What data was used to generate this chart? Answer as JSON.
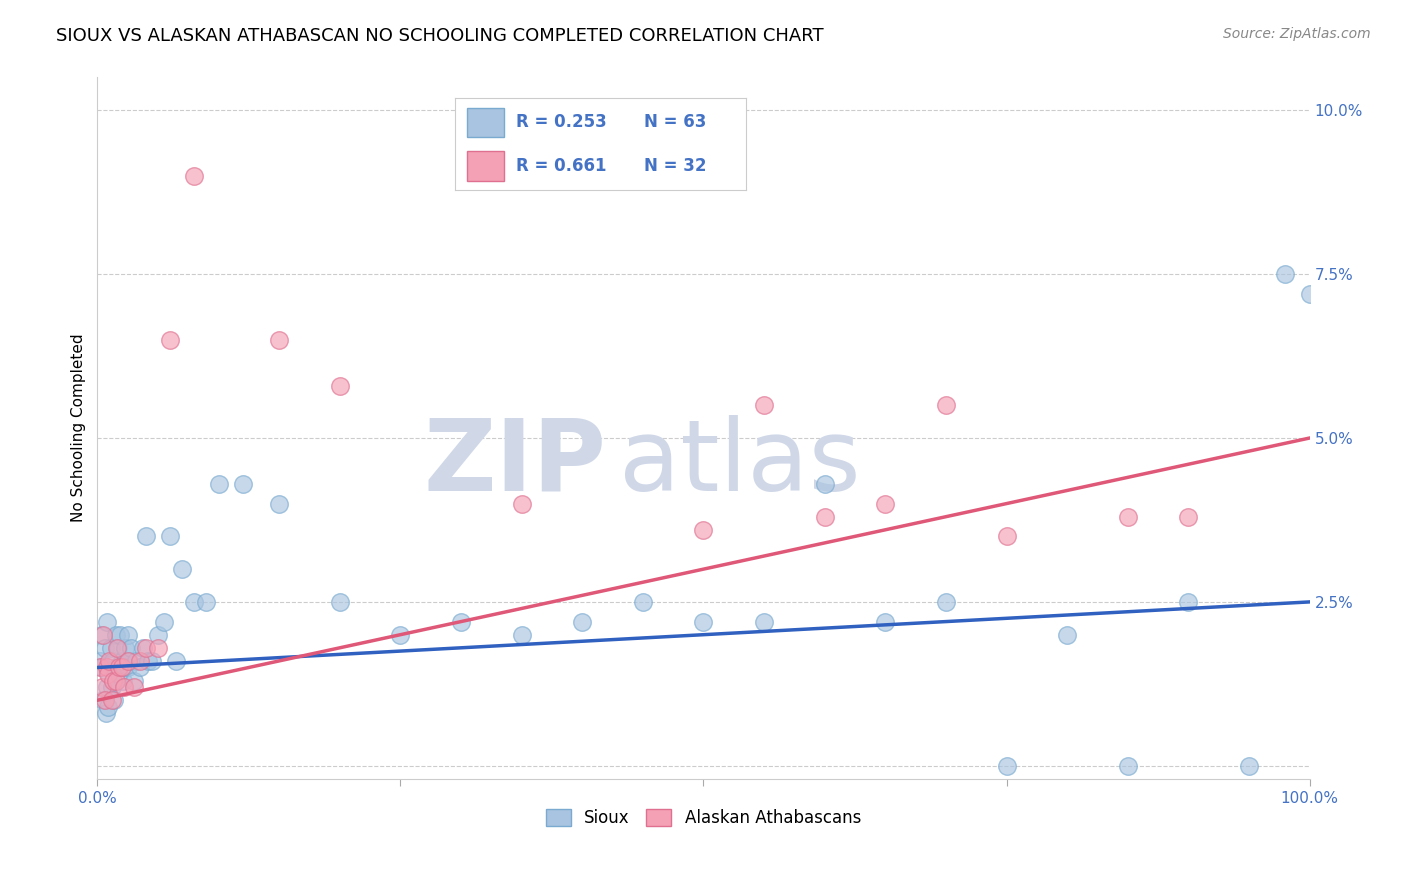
{
  "title": "SIOUX VS ALASKAN ATHABASCAN NO SCHOOLING COMPLETED CORRELATION CHART",
  "source": "Source: ZipAtlas.com",
  "ylabel": "No Schooling Completed",
  "sioux_R": 0.253,
  "sioux_N": 63,
  "athabascan_R": 0.661,
  "athabascan_N": 32,
  "sioux_color": "#a8c4e0",
  "sioux_edge_color": "#7aaad0",
  "athabascan_color": "#f4a0b5",
  "athabascan_edge_color": "#e07090",
  "sioux_line_color": "#3060c0",
  "athabascan_line_color": "#e05878",
  "background_color": "#ffffff",
  "grid_color": "#cccccc",
  "xlim": [
    0.0,
    1.0
  ],
  "ylim": [
    -0.002,
    0.105
  ],
  "yticks": [
    0.0,
    0.025,
    0.05,
    0.075,
    0.1
  ],
  "xticks": [
    0.0,
    0.25,
    0.5,
    0.75,
    1.0
  ],
  "xtick_labels": [
    "0.0%",
    "",
    "",
    "",
    "100.0%"
  ],
  "sioux_x": [
    0.002,
    0.003,
    0.004,
    0.005,
    0.006,
    0.007,
    0.008,
    0.008,
    0.009,
    0.01,
    0.011,
    0.012,
    0.013,
    0.014,
    0.015,
    0.015,
    0.016,
    0.017,
    0.018,
    0.019,
    0.02,
    0.021,
    0.022,
    0.023,
    0.025,
    0.025,
    0.026,
    0.028,
    0.03,
    0.032,
    0.035,
    0.038,
    0.04,
    0.042,
    0.045,
    0.05,
    0.055,
    0.06,
    0.065,
    0.07,
    0.08,
    0.09,
    0.1,
    0.12,
    0.15,
    0.2,
    0.25,
    0.3,
    0.35,
    0.4,
    0.45,
    0.5,
    0.55,
    0.6,
    0.65,
    0.7,
    0.75,
    0.8,
    0.85,
    0.9,
    0.95,
    0.98,
    1.0
  ],
  "sioux_y": [
    0.016,
    0.02,
    0.015,
    0.01,
    0.018,
    0.008,
    0.012,
    0.022,
    0.009,
    0.014,
    0.018,
    0.012,
    0.016,
    0.01,
    0.013,
    0.02,
    0.015,
    0.018,
    0.014,
    0.02,
    0.016,
    0.013,
    0.015,
    0.018,
    0.015,
    0.02,
    0.016,
    0.018,
    0.013,
    0.016,
    0.015,
    0.018,
    0.035,
    0.016,
    0.016,
    0.02,
    0.022,
    0.035,
    0.016,
    0.03,
    0.025,
    0.025,
    0.043,
    0.043,
    0.04,
    0.025,
    0.02,
    0.022,
    0.02,
    0.022,
    0.025,
    0.022,
    0.022,
    0.043,
    0.022,
    0.025,
    0.0,
    0.02,
    0.0,
    0.025,
    0.0,
    0.075,
    0.072
  ],
  "athabascan_x": [
    0.002,
    0.004,
    0.005,
    0.006,
    0.008,
    0.009,
    0.01,
    0.012,
    0.013,
    0.015,
    0.016,
    0.018,
    0.02,
    0.022,
    0.025,
    0.03,
    0.035,
    0.04,
    0.05,
    0.06,
    0.08,
    0.15,
    0.2,
    0.35,
    0.5,
    0.55,
    0.6,
    0.65,
    0.7,
    0.75,
    0.85,
    0.9
  ],
  "athabascan_y": [
    0.015,
    0.012,
    0.02,
    0.01,
    0.015,
    0.014,
    0.016,
    0.01,
    0.013,
    0.013,
    0.018,
    0.015,
    0.015,
    0.012,
    0.016,
    0.012,
    0.016,
    0.018,
    0.018,
    0.065,
    0.09,
    0.065,
    0.058,
    0.04,
    0.036,
    0.055,
    0.038,
    0.04,
    0.055,
    0.035,
    0.038,
    0.038
  ],
  "sioux_trend_x": [
    0.0,
    1.0
  ],
  "sioux_trend_y": [
    0.015,
    0.025
  ],
  "athabascan_trend_x": [
    0.0,
    1.0
  ],
  "athabascan_trend_y": [
    0.01,
    0.05
  ],
  "watermark_zip": "ZIP",
  "watermark_atlas": "atlas",
  "watermark_color": "#d0d8e8",
  "title_fontsize": 13,
  "axis_label_fontsize": 11,
  "tick_fontsize": 11,
  "legend_fontsize": 13
}
